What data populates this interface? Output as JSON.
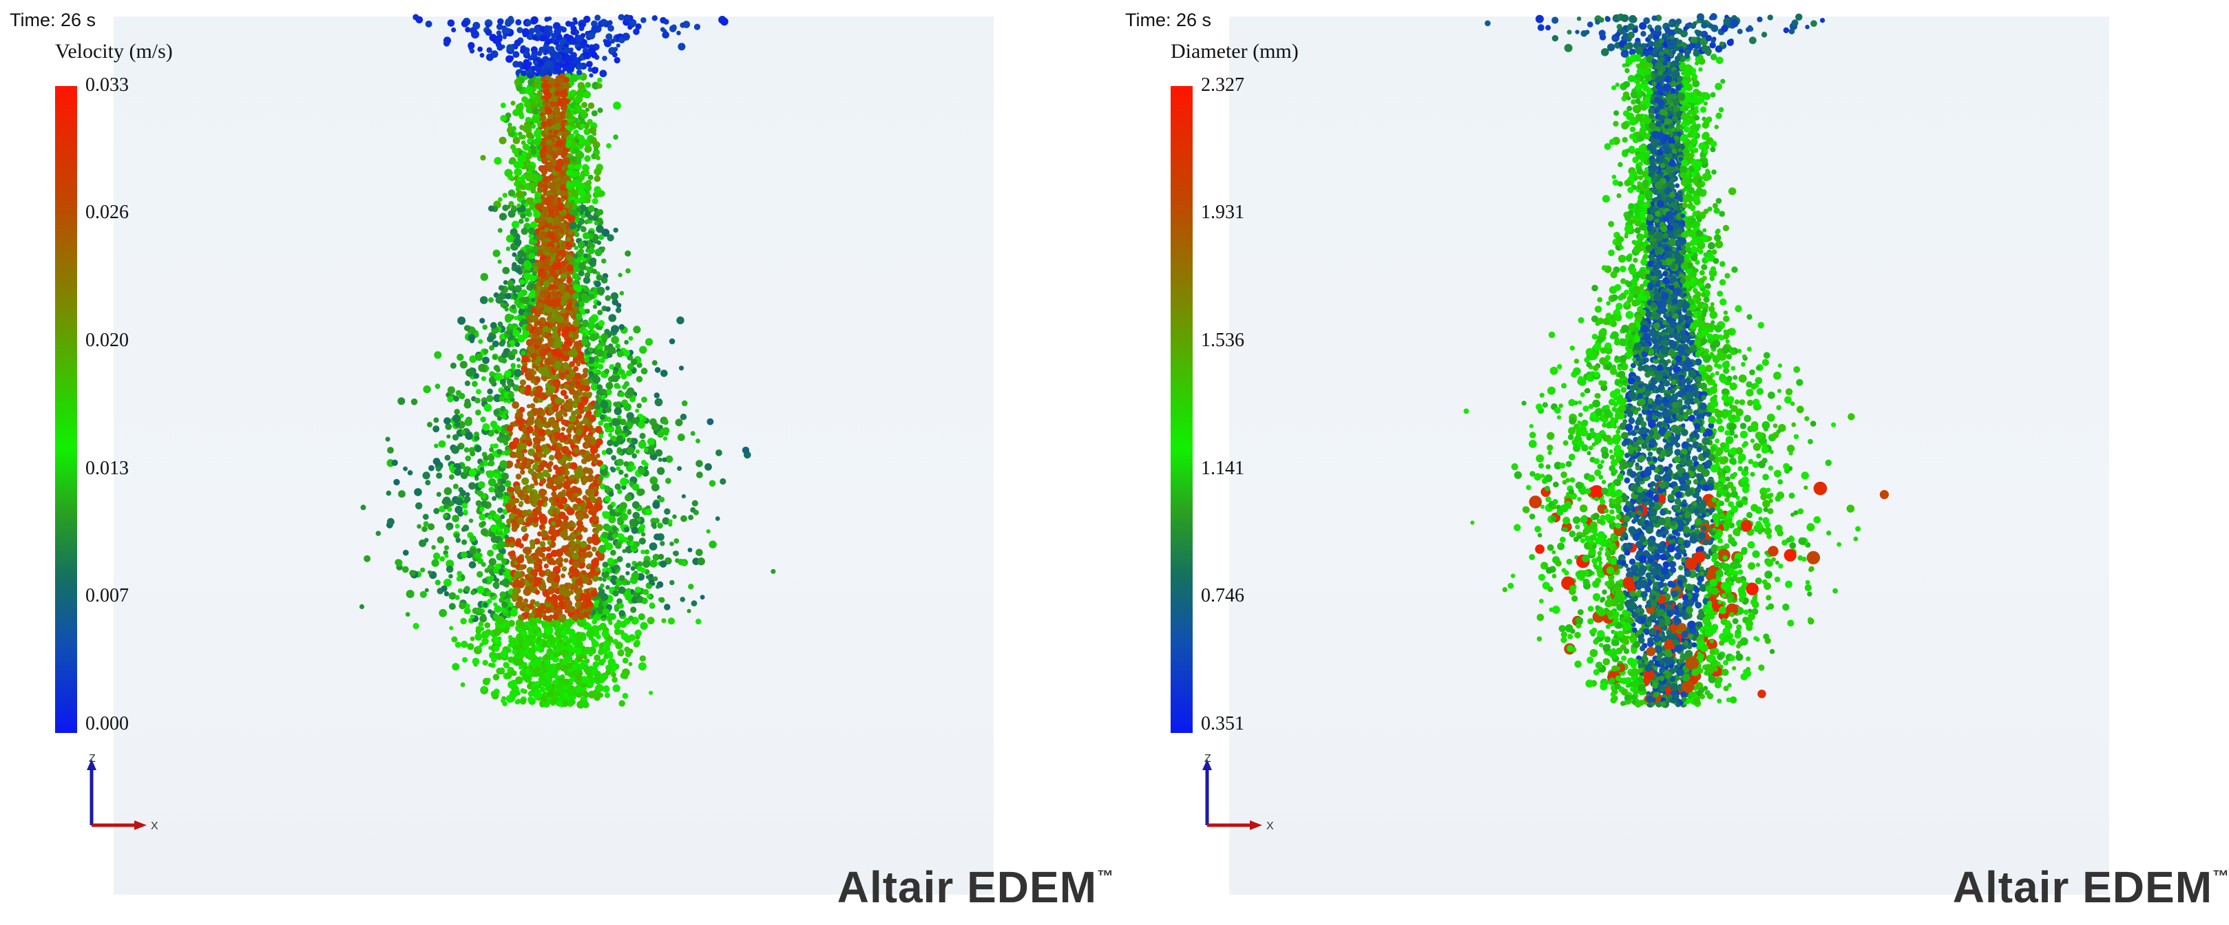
{
  "panels": [
    {
      "time_label": "Time: 26 s",
      "colorbar": {
        "title": "Velocity (m/s)",
        "ticks": [
          "0.033",
          "0.026",
          "0.020",
          "0.013",
          "0.007",
          "0.000"
        ],
        "min": 0.0,
        "max": 0.033
      },
      "axes": {
        "z": "Z",
        "x": "X"
      },
      "brand": "Altair EDEM",
      "brand_mark": "™"
    },
    {
      "time_label": "Time: 26 s",
      "colorbar": {
        "title": "Diameter (mm)",
        "ticks": [
          "2.327",
          "1.931",
          "1.536",
          "1.141",
          "0.746",
          "0.351"
        ],
        "min": 0.351,
        "max": 2.327
      },
      "axes": {
        "z": "Z",
        "x": "X"
      },
      "brand": "Altair EDEM",
      "brand_mark": "™"
    }
  ],
  "colors": {
    "high": "#ff1500",
    "mid": "#10f000",
    "low": "#0a18f2",
    "axis_z": "#1a1aa8",
    "axis_x": "#c01010"
  }
}
